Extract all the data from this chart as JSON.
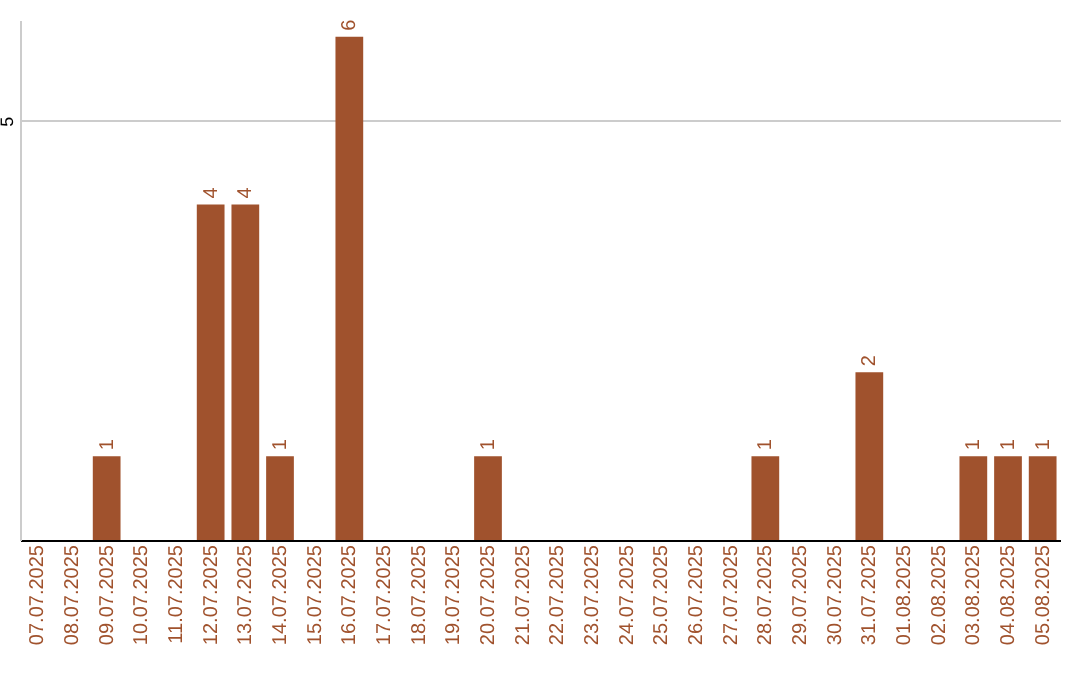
{
  "chart_data": {
    "type": "bar",
    "categories": [
      "07.07.2025",
      "08.07.2025",
      "09.07.2025",
      "10.07.2025",
      "11.07.2025",
      "12.07.2025",
      "13.07.2025",
      "14.07.2025",
      "15.07.2025",
      "16.07.2025",
      "17.07.2025",
      "18.07.2025",
      "19.07.2025",
      "20.07.2025",
      "21.07.2025",
      "22.07.2025",
      "23.07.2025",
      "24.07.2025",
      "25.07.2025",
      "26.07.2025",
      "27.07.2025",
      "28.07.2025",
      "29.07.2025",
      "30.07.2025",
      "31.07.2025",
      "01.08.2025",
      "02.08.2025",
      "03.08.2025",
      "04.08.2025",
      "05.08.2025"
    ],
    "values": [
      0,
      0,
      1,
      0,
      0,
      4,
      4,
      1,
      0,
      6,
      0,
      0,
      0,
      1,
      0,
      0,
      0,
      0,
      0,
      0,
      0,
      1,
      0,
      0,
      2,
      0,
      0,
      1,
      1,
      1
    ],
    "value_labels": [
      null,
      null,
      "1",
      null,
      null,
      "4",
      "4",
      "1",
      null,
      "6",
      null,
      null,
      null,
      "1",
      null,
      null,
      null,
      null,
      null,
      null,
      null,
      "1",
      null,
      null,
      "2",
      null,
      null,
      "1",
      "1",
      "1"
    ],
    "color": "#a0522d",
    "ylim": [
      0,
      6.2
    ],
    "yticks": [
      5
    ],
    "grid": "y"
  }
}
